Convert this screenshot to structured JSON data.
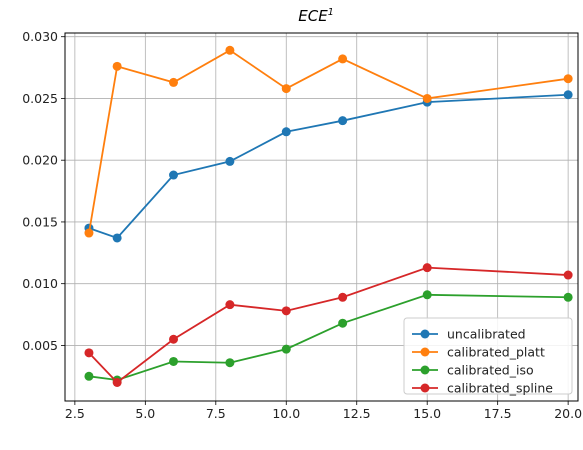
{
  "chart_data": {
    "type": "line",
    "title": "ECE",
    "title_superscript": "1",
    "xlabel": "",
    "ylabel": "",
    "xlim": [
      2.15,
      20.35
    ],
    "ylim": [
      0.0005,
      0.0303
    ],
    "xticks": [
      2.5,
      5.0,
      7.5,
      10.0,
      12.5,
      15.0,
      17.5,
      20.0
    ],
    "xtick_labels": [
      "2.5",
      "5.0",
      "7.5",
      "10.0",
      "12.5",
      "15.0",
      "17.5",
      "20.0"
    ],
    "yticks": [
      0.005,
      0.01,
      0.015,
      0.02,
      0.025,
      0.03
    ],
    "ytick_labels": [
      "0.005",
      "0.010",
      "0.015",
      "0.020",
      "0.025",
      "0.030"
    ],
    "grid": true,
    "legend_position": "lower-right",
    "x": [
      3,
      4,
      6,
      8,
      10,
      12,
      15,
      20
    ],
    "series": [
      {
        "name": "uncalibrated",
        "color": "#1f77b4",
        "values": [
          0.0145,
          0.0137,
          0.0188,
          0.0199,
          0.0223,
          0.0232,
          0.0247,
          0.0253
        ]
      },
      {
        "name": "calibrated_platt",
        "color": "#ff7f0e",
        "values": [
          0.0141,
          0.0276,
          0.0263,
          0.0289,
          0.0258,
          0.0282,
          0.025,
          0.0266
        ]
      },
      {
        "name": "calibrated_iso",
        "color": "#2ca02c",
        "values": [
          0.0025,
          0.0022,
          0.0037,
          0.0036,
          0.0047,
          0.0068,
          0.0091,
          0.0089
        ]
      },
      {
        "name": "calibrated_spline",
        "color": "#d62728",
        "values": [
          0.0044,
          0.002,
          0.0055,
          0.0083,
          0.0078,
          0.0089,
          0.0113,
          0.0107
        ]
      }
    ]
  }
}
